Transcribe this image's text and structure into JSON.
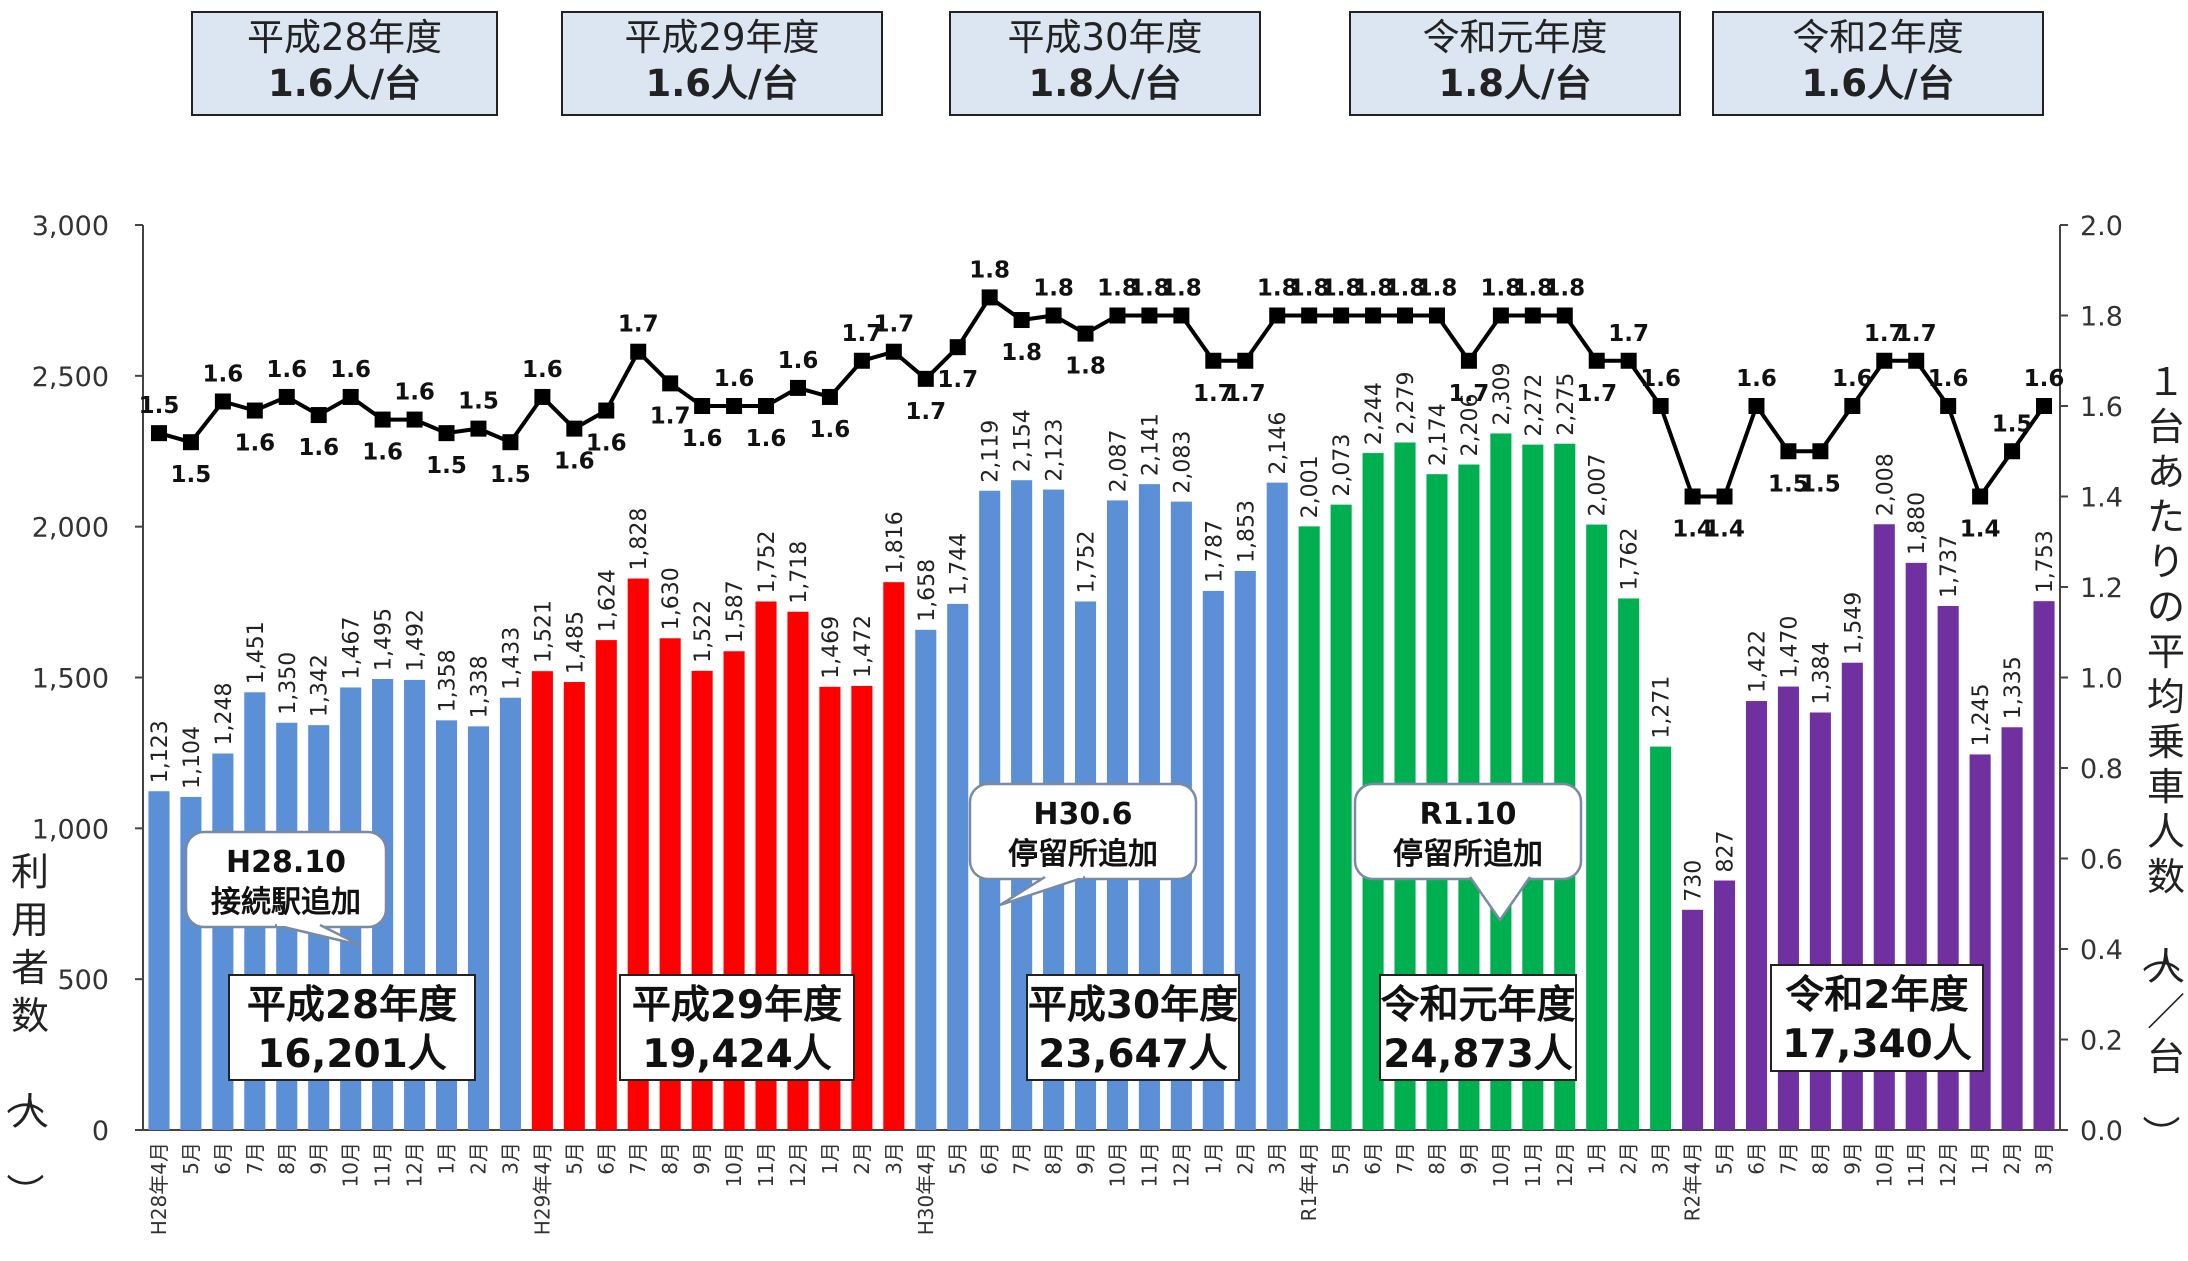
{
  "header_boxes": [
    {
      "period": "平成28年度",
      "value": "1.6人/台"
    },
    {
      "period": "平成29年度",
      "value": "1.6人/台"
    },
    {
      "period": "平成30年度",
      "value": "1.8人/台"
    },
    {
      "period": "令和元年度",
      "value": "1.8人/台"
    },
    {
      "period": "令和2年度",
      "value": "1.6人/台"
    }
  ],
  "summaries": [
    {
      "line1": "平成28年度",
      "line2": "16,201人"
    },
    {
      "line1": "平成29年度",
      "line2": "19,424人"
    },
    {
      "line1": "平成30年度",
      "line2": "23,647人"
    },
    {
      "line1": "令和元年度",
      "line2": "24,873人"
    },
    {
      "line1": "令和2年度",
      "line2": "17,340人"
    }
  ],
  "callouts": [
    {
      "line1": "H28.10",
      "line2": "接続駅追加"
    },
    {
      "line1": "H30.6",
      "line2": "停留所追加"
    },
    {
      "line1": "R1.10",
      "line2": "停留所追加"
    }
  ],
  "colors": {
    "fy28": "#5b8fd6",
    "fy29": "#ff0000",
    "fy30": "#5b8fd6",
    "fy31": "#00b050",
    "fy32": "#7030a0",
    "line": "#000000"
  },
  "chart_data": {
    "type": "bar",
    "y_left_label": "利用者数（人）",
    "y_right_label": "１台あたりの平均乗車人数（人／台）",
    "y_left_range": [
      0,
      3000
    ],
    "y_left_ticks": [
      "0",
      "500",
      "1,000",
      "1,500",
      "2,000",
      "2,500",
      "3,000"
    ],
    "y_right_range": [
      0,
      2.0
    ],
    "y_right_ticks": [
      "0.0",
      "0.2",
      "0.4",
      "0.6",
      "0.8",
      "1.0",
      "1.2",
      "1.4",
      "1.6",
      "1.8",
      "2.0"
    ],
    "grid": false,
    "categories": [
      "H28年4月",
      "5月",
      "6月",
      "7月",
      "8月",
      "9月",
      "10月",
      "11月",
      "12月",
      "1月",
      "2月",
      "3月",
      "H29年4月",
      "5月",
      "6月",
      "7月",
      "8月",
      "9月",
      "10月",
      "11月",
      "12月",
      "1月",
      "2月",
      "3月",
      "H30年4月",
      "5月",
      "6月",
      "7月",
      "8月",
      "9月",
      "10月",
      "11月",
      "12月",
      "1月",
      "2月",
      "3月",
      "R1年4月",
      "5月",
      "6月",
      "7月",
      "8月",
      "9月",
      "10月",
      "11月",
      "12月",
      "1月",
      "2月",
      "3月",
      "R2年4月",
      "5月",
      "6月",
      "7月",
      "8月",
      "9月",
      "10月",
      "11月",
      "12月",
      "1月",
      "2月",
      "3月"
    ],
    "series": [
      {
        "name": "利用者数",
        "type": "bar",
        "axis": "left",
        "values": [
          1123,
          1104,
          1248,
          1451,
          1350,
          1342,
          1467,
          1495,
          1492,
          1358,
          1338,
          1433,
          1521,
          1485,
          1624,
          1828,
          1630,
          1522,
          1587,
          1752,
          1718,
          1469,
          1472,
          1816,
          1658,
          1744,
          2119,
          2154,
          2123,
          1752,
          2087,
          2141,
          2083,
          1787,
          1853,
          2146,
          2001,
          2073,
          2244,
          2279,
          2174,
          2206,
          2309,
          2272,
          2275,
          2007,
          1762,
          1271,
          730,
          827,
          1422,
          1470,
          1384,
          1549,
          2008,
          1880,
          1737,
          1245,
          1335,
          1753
        ],
        "labels": [
          "1,123",
          "1,104",
          "1,248",
          "1,451",
          "1,350",
          "1,342",
          "1,467",
          "1,495",
          "1,492",
          "1,358",
          "1,338",
          "1,433",
          "1,521",
          "1,485",
          "1,624",
          "1,828",
          "1,630",
          "1,522",
          "1,587",
          "1,752",
          "1,718",
          "1,469",
          "1,472",
          "1,816",
          "1,658",
          "1,744",
          "2,119",
          "2,154",
          "2,123",
          "1,752",
          "2,087",
          "2,141",
          "2,083",
          "1,787",
          "1,853",
          "2,146",
          "2,001",
          "2,073",
          "2,244",
          "2,279",
          "2,174",
          "2,206",
          "2,309",
          "2,272",
          "2,275",
          "2,007",
          "1,762",
          "1,271",
          "730",
          "827",
          "1,422",
          "1,470",
          "1,384",
          "1,549",
          "2,008",
          "1,880",
          "1,737",
          "1,245",
          "1,335",
          "1,753"
        ]
      },
      {
        "name": "1台あたりの平均乗車人数",
        "type": "line",
        "axis": "right",
        "values": [
          1.54,
          1.52,
          1.61,
          1.59,
          1.62,
          1.58,
          1.62,
          1.57,
          1.57,
          1.54,
          1.55,
          1.52,
          1.62,
          1.55,
          1.59,
          1.72,
          1.65,
          1.6,
          1.6,
          1.6,
          1.64,
          1.62,
          1.7,
          1.72,
          1.66,
          1.73,
          1.84,
          1.79,
          1.8,
          1.76,
          1.8,
          1.8,
          1.8,
          1.7,
          1.7,
          1.8,
          1.8,
          1.8,
          1.8,
          1.8,
          1.8,
          1.7,
          1.8,
          1.8,
          1.8,
          1.7,
          1.7,
          1.6,
          1.4,
          1.4,
          1.6,
          1.5,
          1.5,
          1.6,
          1.7,
          1.7,
          1.6,
          1.4,
          1.5,
          1.6
        ],
        "labels": [
          "1.5",
          "1.5",
          "1.6",
          "1.6",
          "1.6",
          "1.6",
          "1.6",
          "1.6",
          "1.6",
          "1.5",
          "1.5",
          "1.5",
          "1.6",
          "1.6",
          "1.6",
          "1.7",
          "1.7",
          "1.6",
          "1.6",
          "1.6",
          "1.6",
          "1.6",
          "1.7",
          "1.7",
          "1.7",
          "1.7",
          "1.8",
          "1.8",
          "1.8",
          "1.8",
          "1.8",
          "1.8",
          "1.8",
          "1.7",
          "1.7",
          "1.8",
          "1.8",
          "1.8",
          "1.8",
          "1.8",
          "1.8",
          "1.7",
          "1.8",
          "1.8",
          "1.8",
          "1.7",
          "1.7",
          "1.6",
          "1.4",
          "1.4",
          "1.6",
          "1.5",
          "1.5",
          "1.6",
          "1.7",
          "1.7",
          "1.6",
          "1.4",
          "1.5",
          "1.6"
        ]
      }
    ]
  }
}
